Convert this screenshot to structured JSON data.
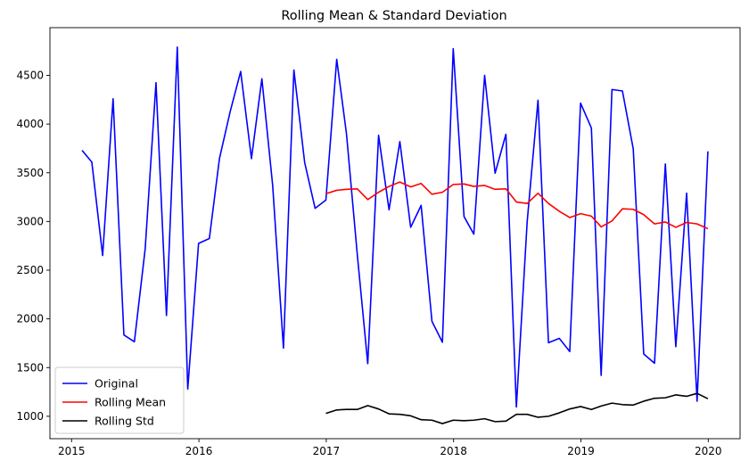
{
  "chart_data": {
    "type": "line",
    "title": "Rolling Mean & Standard Deviation",
    "xlabel": "",
    "ylabel": "",
    "xlim": [
      2014.83,
      2020.25
    ],
    "ylim": [
      770,
      4990
    ],
    "x_ticks": [
      {
        "value": 2015,
        "label": "2015"
      },
      {
        "value": 2016,
        "label": "2016"
      },
      {
        "value": 2017,
        "label": "2017"
      },
      {
        "value": 2018,
        "label": "2018"
      },
      {
        "value": 2019,
        "label": "2019"
      },
      {
        "value": 2020,
        "label": "2020"
      }
    ],
    "y_ticks": [
      {
        "value": 1000,
        "label": "1000"
      },
      {
        "value": 1500,
        "label": "1500"
      },
      {
        "value": 2000,
        "label": "2000"
      },
      {
        "value": 2500,
        "label": "2500"
      },
      {
        "value": 3000,
        "label": "3000"
      },
      {
        "value": 3500,
        "label": "3500"
      },
      {
        "value": 4000,
        "label": "4000"
      },
      {
        "value": 4500,
        "label": "4500"
      }
    ],
    "grid": false,
    "legend": {
      "position": "lower-left"
    },
    "series": [
      {
        "name": "Original",
        "color": "#0000ff",
        "x": [
          "2015-01-31",
          "2015-02-28",
          "2015-03-31",
          "2015-04-30",
          "2015-05-31",
          "2015-06-30",
          "2015-07-31",
          "2015-08-31",
          "2015-09-30",
          "2015-10-31",
          "2015-11-30",
          "2015-12-31",
          "2016-01-31",
          "2016-02-29",
          "2016-03-31",
          "2016-04-30",
          "2016-05-31",
          "2016-06-30",
          "2016-07-31",
          "2016-08-31",
          "2016-09-30",
          "2016-10-31",
          "2016-11-30",
          "2016-12-31",
          "2017-01-31",
          "2017-02-28",
          "2017-03-31",
          "2017-04-30",
          "2017-05-31",
          "2017-06-30",
          "2017-07-31",
          "2017-08-31",
          "2017-09-30",
          "2017-10-31",
          "2017-11-30",
          "2017-12-31",
          "2018-01-31",
          "2018-02-28",
          "2018-03-31",
          "2018-04-30",
          "2018-05-31",
          "2018-06-30",
          "2018-07-31",
          "2018-08-31",
          "2018-09-30",
          "2018-10-31",
          "2018-11-30",
          "2018-12-31",
          "2019-01-31",
          "2019-02-28",
          "2019-03-31",
          "2019-04-30",
          "2019-05-31",
          "2019-06-30",
          "2019-07-31",
          "2019-08-31",
          "2019-09-30",
          "2019-10-31",
          "2019-11-30",
          "2019-12-31",
          "2020-01-31"
        ],
        "values": [
          3730,
          3610,
          2650,
          4260,
          1835,
          1765,
          2720,
          4425,
          2035,
          4790,
          1280,
          2775,
          2825,
          3645,
          4130,
          4540,
          3645,
          4465,
          3370,
          1700,
          4555,
          3605,
          3135,
          3220,
          4665,
          3900,
          2660,
          1540,
          3885,
          3120,
          3820,
          2940,
          3165,
          1975,
          1760,
          4775,
          3050,
          2870,
          4500,
          3495,
          3895,
          1095,
          3000,
          4245,
          1755,
          1800,
          1665,
          4215,
          3960,
          1420,
          4355,
          4340,
          3745,
          1640,
          1545,
          3590,
          1715,
          3290,
          1155,
          3720,
          null
        ]
      },
      {
        "name": "Rolling Mean",
        "color": "#ff0000",
        "x": [
          "2016-12-31",
          "2017-01-31",
          "2017-02-28",
          "2017-03-31",
          "2017-04-30",
          "2017-05-31",
          "2017-06-30",
          "2017-07-31",
          "2017-08-31",
          "2017-09-30",
          "2017-10-31",
          "2017-11-30",
          "2017-12-31",
          "2018-01-31",
          "2018-02-28",
          "2018-03-31",
          "2018-04-30",
          "2018-05-31",
          "2018-06-30",
          "2018-07-31",
          "2018-08-31",
          "2018-09-30",
          "2018-10-31",
          "2018-11-30",
          "2018-12-31",
          "2019-01-31",
          "2019-02-28",
          "2019-03-31",
          "2019-04-30",
          "2019-05-31",
          "2019-06-30",
          "2019-07-31",
          "2019-08-31",
          "2019-09-30",
          "2019-10-31",
          "2019-11-30",
          "2019-12-31"
        ],
        "values": [
          3285,
          3320,
          3330,
          3335,
          3225,
          3300,
          3360,
          3405,
          3355,
          3390,
          3280,
          3300,
          3380,
          3385,
          3360,
          3370,
          3330,
          3335,
          3200,
          3185,
          3290,
          3185,
          3105,
          3040,
          3080,
          3055,
          2945,
          3005,
          3130,
          3125,
          3070,
          2975,
          2995,
          2940,
          2990,
          2975,
          2925
        ]
      },
      {
        "name": "Rolling Std",
        "color": "#000000",
        "x": [
          "2016-12-31",
          "2017-01-31",
          "2017-02-28",
          "2017-03-31",
          "2017-04-30",
          "2017-05-31",
          "2017-06-30",
          "2017-07-31",
          "2017-08-31",
          "2017-09-30",
          "2017-10-31",
          "2017-11-30",
          "2017-12-31",
          "2018-01-31",
          "2018-02-28",
          "2018-03-31",
          "2018-04-30",
          "2018-05-31",
          "2018-06-30",
          "2018-07-31",
          "2018-08-31",
          "2018-09-30",
          "2018-10-31",
          "2018-11-30",
          "2018-12-31",
          "2019-01-31",
          "2019-02-28",
          "2019-03-31",
          "2019-04-30",
          "2019-05-31",
          "2019-06-30",
          "2019-07-31",
          "2019-08-31",
          "2019-09-30",
          "2019-10-31",
          "2019-11-30",
          "2019-12-31"
        ],
        "values": [
          1030,
          1065,
          1070,
          1070,
          1110,
          1075,
          1025,
          1020,
          1005,
          965,
          960,
          925,
          960,
          955,
          960,
          975,
          945,
          950,
          1020,
          1020,
          990,
          1000,
          1035,
          1075,
          1100,
          1070,
          1105,
          1135,
          1120,
          1115,
          1155,
          1185,
          1190,
          1220,
          1205,
          1235,
          1180
        ]
      }
    ]
  }
}
